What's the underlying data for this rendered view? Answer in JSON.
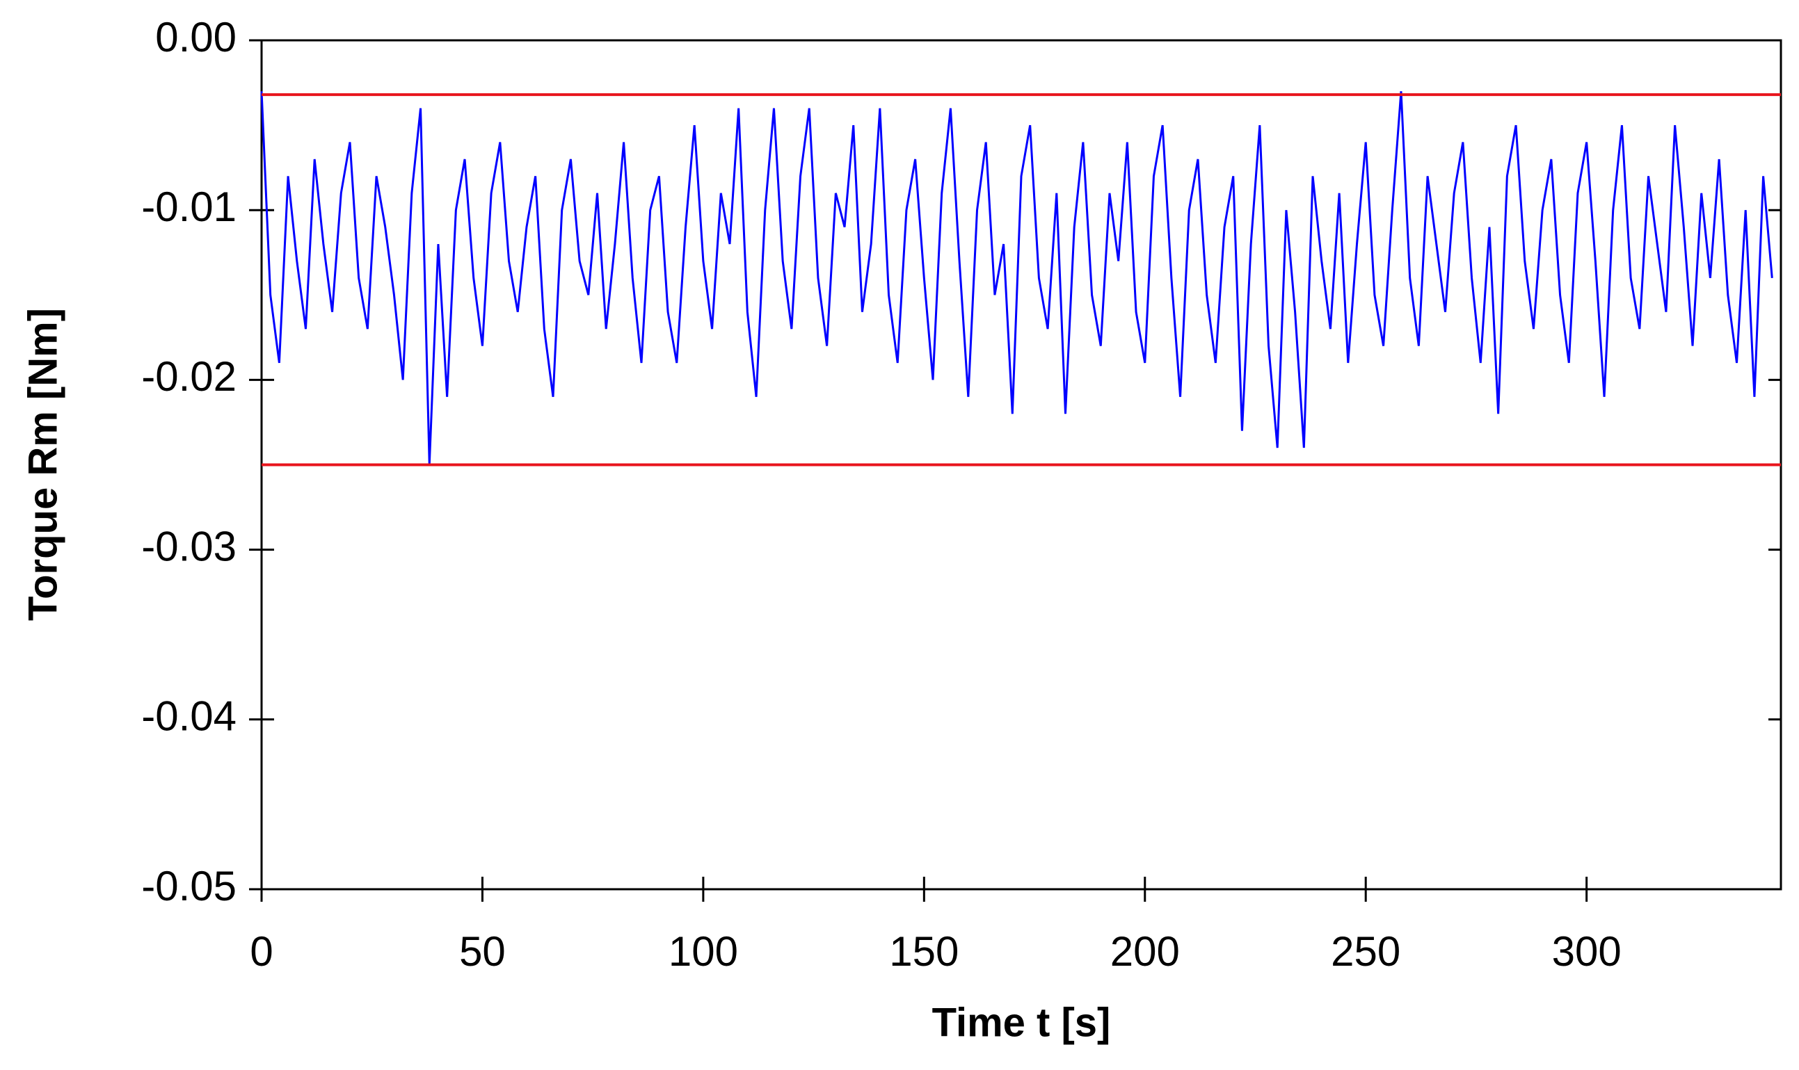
{
  "chart_data": {
    "type": "line",
    "xlabel": "Time t [s]",
    "ylabel": "Torque Rm [Nm]",
    "x": [
      0,
      2,
      4,
      6,
      8,
      10,
      12,
      14,
      16,
      18,
      20,
      22,
      24,
      26,
      28,
      30,
      32,
      34,
      36,
      38,
      40,
      42,
      44,
      46,
      48,
      50,
      52,
      54,
      56,
      58,
      60,
      62,
      64,
      66,
      68,
      70,
      72,
      74,
      76,
      78,
      80,
      82,
      84,
      86,
      88,
      90,
      92,
      94,
      96,
      98,
      100,
      102,
      104,
      106,
      108,
      110,
      112,
      114,
      116,
      118,
      120,
      122,
      124,
      126,
      128,
      130,
      132,
      134,
      136,
      138,
      140,
      142,
      144,
      146,
      148,
      150,
      152,
      154,
      156,
      158,
      160,
      162,
      164,
      166,
      168,
      170,
      172,
      174,
      176,
      178,
      180,
      182,
      184,
      186,
      188,
      190,
      192,
      194,
      196,
      198,
      200,
      202,
      204,
      206,
      208,
      210,
      212,
      214,
      216,
      218,
      220,
      222,
      224,
      226,
      228,
      230,
      232,
      234,
      236,
      238,
      240,
      242,
      244,
      246,
      248,
      250,
      252,
      254,
      256,
      258,
      260,
      262,
      264,
      266,
      268,
      270,
      272,
      274,
      276,
      278,
      280,
      282,
      284,
      286,
      288,
      290,
      292,
      294,
      296,
      298,
      300,
      302,
      304,
      306,
      308,
      310,
      312,
      314,
      316,
      318,
      320,
      322,
      324,
      326,
      328,
      330,
      332,
      334,
      336,
      338,
      340,
      342
    ],
    "series": [
      {
        "color": "#0000ff",
        "values": [
          -0.003,
          -0.015,
          -0.019,
          -0.008,
          -0.013,
          -0.017,
          -0.007,
          -0.012,
          -0.016,
          -0.009,
          -0.006,
          -0.014,
          -0.017,
          -0.008,
          -0.011,
          -0.015,
          -0.02,
          -0.009,
          -0.004,
          -0.025,
          -0.012,
          -0.021,
          -0.01,
          -0.007,
          -0.014,
          -0.018,
          -0.009,
          -0.006,
          -0.013,
          -0.016,
          -0.011,
          -0.008,
          -0.017,
          -0.021,
          -0.01,
          -0.007,
          -0.013,
          -0.015,
          -0.009,
          -0.017,
          -0.012,
          -0.006,
          -0.014,
          -0.019,
          -0.01,
          -0.008,
          -0.016,
          -0.019,
          -0.011,
          -0.005,
          -0.013,
          -0.017,
          -0.009,
          -0.012,
          -0.004,
          -0.016,
          -0.021,
          -0.01,
          -0.004,
          -0.013,
          -0.017,
          -0.008,
          -0.004,
          -0.014,
          -0.018,
          -0.009,
          -0.011,
          -0.005,
          -0.016,
          -0.012,
          -0.004,
          -0.015,
          -0.019,
          -0.01,
          -0.007,
          -0.014,
          -0.02,
          -0.009,
          -0.004,
          -0.013,
          -0.021,
          -0.01,
          -0.006,
          -0.015,
          -0.012,
          -0.022,
          -0.008,
          -0.005,
          -0.014,
          -0.017,
          -0.009,
          -0.022,
          -0.011,
          -0.006,
          -0.015,
          -0.018,
          -0.009,
          -0.013,
          -0.006,
          -0.016,
          -0.019,
          -0.008,
          -0.005,
          -0.014,
          -0.021,
          -0.01,
          -0.007,
          -0.015,
          -0.019,
          -0.011,
          -0.008,
          -0.023,
          -0.012,
          -0.005,
          -0.018,
          -0.024,
          -0.01,
          -0.016,
          -0.024,
          -0.008,
          -0.013,
          -0.017,
          -0.009,
          -0.019,
          -0.012,
          -0.006,
          -0.015,
          -0.018,
          -0.01,
          -0.003,
          -0.014,
          -0.018,
          -0.008,
          -0.012,
          -0.016,
          -0.009,
          -0.006,
          -0.014,
          -0.019,
          -0.011,
          -0.022,
          -0.008,
          -0.005,
          -0.013,
          -0.017,
          -0.01,
          -0.007,
          -0.015,
          -0.019,
          -0.009,
          -0.006,
          -0.013,
          -0.021,
          -0.01,
          -0.005,
          -0.014,
          -0.017,
          -0.008,
          -0.012,
          -0.016,
          -0.005,
          -0.011,
          -0.018,
          -0.009,
          -0.014,
          -0.007,
          -0.015,
          -0.019,
          -0.01,
          -0.021,
          -0.008,
          -0.014
        ]
      }
    ],
    "reference_lines": [
      {
        "value": -0.0032,
        "color": "#e8141c"
      },
      {
        "value": -0.025,
        "color": "#e8141c"
      }
    ],
    "xlim": [
      0,
      344
    ],
    "ylim": [
      -0.05,
      0
    ],
    "xticks": [
      0,
      50,
      100,
      150,
      200,
      250,
      300
    ],
    "yticks": [
      {
        "value": 0,
        "label": "0.00"
      },
      -0.01,
      -0.02,
      -0.03,
      -0.04,
      -0.05
    ],
    "grid": false
  }
}
